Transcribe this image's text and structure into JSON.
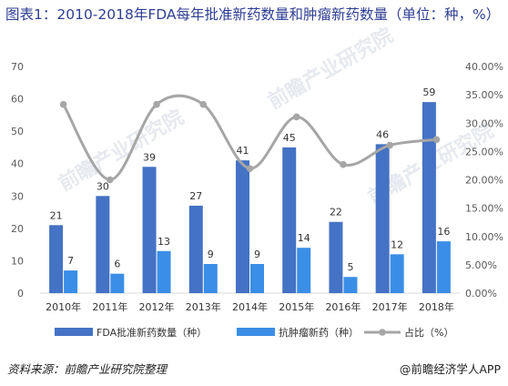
{
  "title": "图表1：2010-2018年FDA每年批准新药数量和肿瘤新药数量（单位：种，%）",
  "watermark": "前瞻产业研究院",
  "source": "资料来源：前瞻产业研究院整理",
  "brand": "@前瞻经济学人APP",
  "colors": {
    "total": "#4472c4",
    "tumor": "#3a8ee6",
    "ratio": "#a6a6a6",
    "title": "#2f3f93"
  },
  "chart_data": {
    "type": "bar",
    "categories": [
      "2010年",
      "2011年",
      "2012年",
      "2013年",
      "2014年",
      "2015年",
      "2016年",
      "2017年",
      "2018年"
    ],
    "series": [
      {
        "name": "FDA批准新药数量（种）",
        "type": "bar",
        "axis": "left",
        "values": [
          21,
          30,
          39,
          27,
          41,
          45,
          22,
          46,
          59
        ]
      },
      {
        "name": "抗肿瘤新药（种）",
        "type": "bar",
        "axis": "left",
        "values": [
          7,
          6,
          13,
          9,
          9,
          14,
          5,
          12,
          16
        ]
      },
      {
        "name": "占比（%）",
        "type": "line",
        "axis": "right",
        "values": [
          33.3,
          20.0,
          33.3,
          33.3,
          22.0,
          31.1,
          22.7,
          26.1,
          27.1
        ]
      }
    ],
    "ylim": [
      0,
      70
    ],
    "yticks": [
      "0",
      "10",
      "20",
      "30",
      "40",
      "50",
      "60",
      "70"
    ],
    "y2lim": [
      0,
      40
    ],
    "y2ticks": [
      "0.00%",
      "5.00%",
      "10.00%",
      "15.00%",
      "20.00%",
      "25.00%",
      "30.00%",
      "35.00%",
      "40.00%"
    ],
    "legend_position": "bottom"
  }
}
